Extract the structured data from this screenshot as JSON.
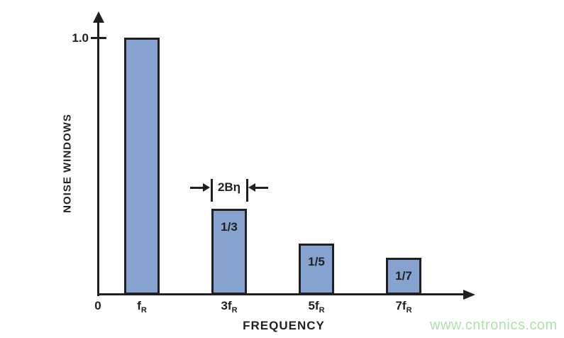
{
  "watermark": {
    "text": "www.cntronics.com",
    "color": "#afe3a9"
  },
  "chart_data": {
    "type": "bar",
    "title": "",
    "xlabel": "FREQUENCY",
    "ylabel": "NOISE WINDOWS",
    "x_origin_label": "0",
    "y_ticks": [
      {
        "value": 1.0,
        "label": "1.0"
      }
    ],
    "ylim": [
      0,
      1.15
    ],
    "grid": "off",
    "legend": "none",
    "categories": [
      "fR",
      "3fR",
      "5fR",
      "7fR"
    ],
    "bars": [
      {
        "name": "fR",
        "coef": "",
        "base": "f",
        "sub": "R",
        "harmonic": 1,
        "value": 1.0,
        "bar_label": ""
      },
      {
        "name": "3fR",
        "coef": "3",
        "base": "f",
        "sub": "R",
        "harmonic": 3,
        "value": 0.3333,
        "bar_label": "1/3"
      },
      {
        "name": "5fR",
        "coef": "5",
        "base": "f",
        "sub": "R",
        "harmonic": 5,
        "value": 0.2,
        "bar_label": "1/5"
      },
      {
        "name": "7fR",
        "coef": "7",
        "base": "f",
        "sub": "R",
        "harmonic": 7,
        "value": 0.1429,
        "bar_label": "1/7"
      }
    ],
    "annotation": {
      "text": "2Bη",
      "target": "3fR",
      "meaning": "bandwidth marker"
    },
    "colors": {
      "bar_fill": "#86a2ce",
      "bar_stroke": "#231f20",
      "axis": "#231f20",
      "text": "#231f20"
    }
  }
}
